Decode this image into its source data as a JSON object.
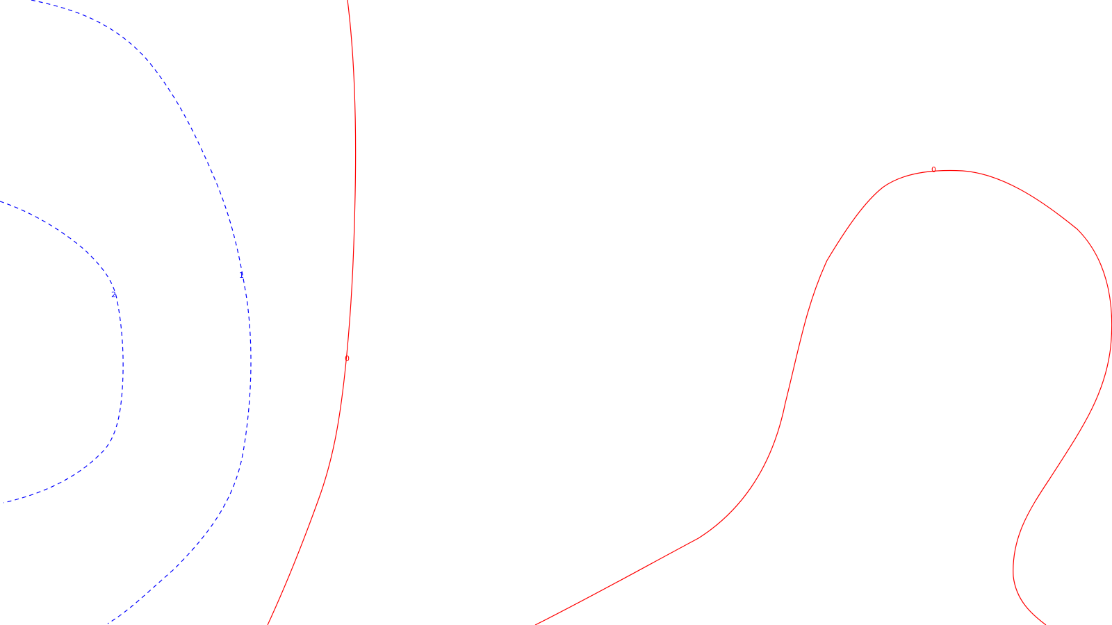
{
  "contour_plot": {
    "contours": [
      {
        "id": "positive-2",
        "level": "2",
        "color": "#0000ff",
        "style": "dashed"
      },
      {
        "id": "positive-1",
        "level": "1",
        "color": "#0000ff",
        "style": "dashed"
      },
      {
        "id": "zero-left",
        "level": "0",
        "color": "#ff0000",
        "style": "solid"
      },
      {
        "id": "zero-right",
        "level": "0",
        "color": "#ff0000",
        "style": "solid"
      }
    ]
  }
}
